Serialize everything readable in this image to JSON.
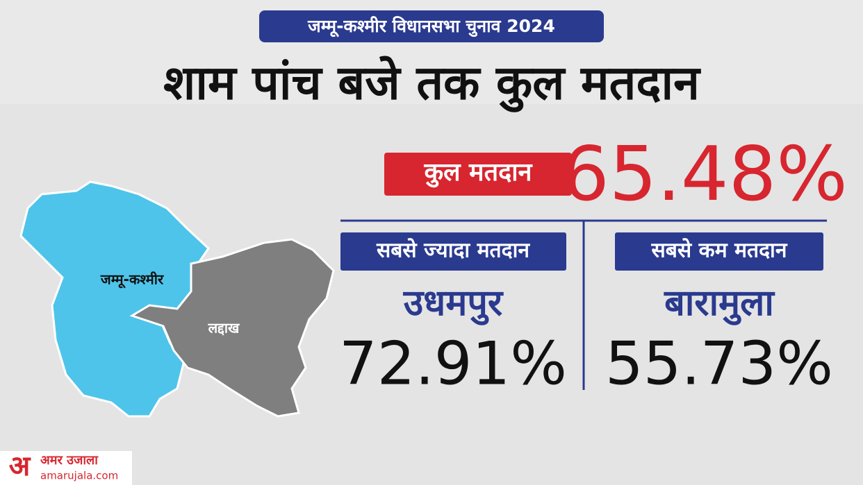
{
  "header": {
    "badge": "जम्मू-कश्मीर विधानसभा चुनाव 2024",
    "title": "शाम पांच बजे तक कुल मतदान"
  },
  "total": {
    "label": "कुल मतदान",
    "value": "65.48%"
  },
  "highest": {
    "label": "सबसे ज्यादा मतदान",
    "place": "उधमपुर",
    "value": "72.91%"
  },
  "lowest": {
    "label": "सबसे कम मतदान",
    "place": "बारामुला",
    "value": "55.73%"
  },
  "map": {
    "regions": [
      "जम्मू-कश्मीर",
      "लद्दाख"
    ]
  },
  "logo": {
    "mark": "अ",
    "name": "अमर उजाला",
    "site": "amarujala.com"
  }
}
